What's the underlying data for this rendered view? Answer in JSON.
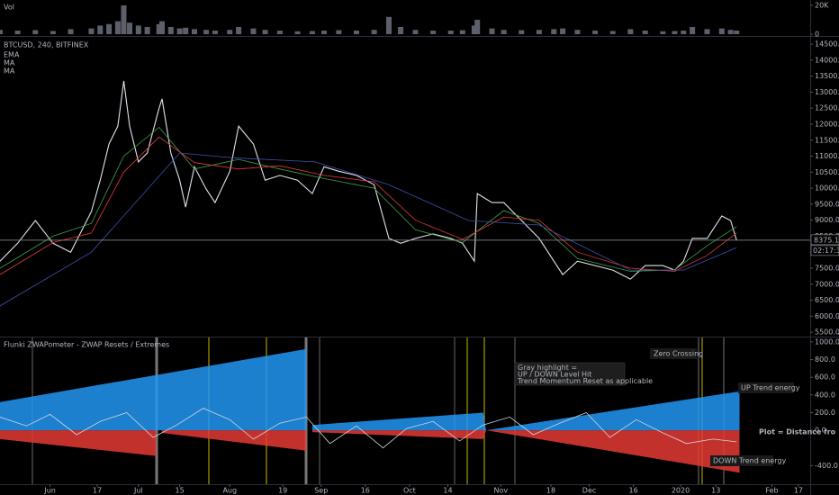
{
  "chart_data": [
    {
      "type": "bar",
      "title": "Vol",
      "color": "#5d606b",
      "ylim": [
        -1250,
        23750
      ],
      "yticks": [
        0,
        {
          "value": 20000,
          "label": "20K"
        }
      ],
      "x": [
        -17,
        -11,
        -5,
        1,
        7,
        14,
        17,
        20,
        23,
        25,
        27,
        30,
        33,
        37,
        38,
        41,
        44,
        46,
        49,
        53,
        56,
        61,
        64,
        69,
        73,
        78,
        84,
        89,
        93,
        98,
        104,
        110,
        115,
        119,
        124,
        130,
        136,
        140,
        144,
        145,
        150,
        154,
        160,
        166,
        171,
        174,
        179,
        185,
        191,
        197,
        202,
        208,
        212,
        215,
        218,
        223,
        228,
        231,
        233
      ],
      "values": [
        3000,
        2500,
        2800,
        2200,
        3500,
        4000,
        6000,
        7000,
        9000,
        20000,
        8000,
        6000,
        5000,
        7000,
        9000,
        5000,
        4000,
        4500,
        3500,
        3000,
        2500,
        3000,
        5000,
        4000,
        3000,
        2500,
        2000,
        2200,
        2500,
        2800,
        2500,
        3000,
        12000,
        5000,
        3000,
        2500,
        2500,
        2800,
        6000,
        10000,
        4000,
        3000,
        2800,
        3000,
        3500,
        4000,
        3000,
        2500,
        2200,
        3500,
        2500,
        2000,
        2200,
        2500,
        5000,
        3500,
        4000,
        3000,
        2500
      ]
    },
    {
      "type": "line",
      "title": "BTCUSD, 240, BITFINEX",
      "countdown": "02:17:34",
      "ylim": [
        5390,
        14700
      ],
      "yticks": [
        {
          "value": 5500,
          "label": "5500.0"
        },
        {
          "value": 6000,
          "label": "6000.0"
        },
        {
          "value": 6500,
          "label": "6500.0"
        },
        {
          "value": 7000,
          "label": "7000.0"
        },
        {
          "value": 7500,
          "label": "7500.0"
        },
        {
          "value": 8000,
          "label": "8000.0"
        },
        {
          "value": 8500,
          "label": "8500.0"
        },
        {
          "value": 9000,
          "label": "9000.0"
        },
        {
          "value": 9500,
          "label": "9500.0"
        },
        {
          "value": 10000,
          "label": "10000.0"
        },
        {
          "value": 10500,
          "label": "10500.0"
        },
        {
          "value": 11000,
          "label": "11000.0"
        },
        {
          "value": 11500,
          "label": "11500.0"
        },
        {
          "value": 12000,
          "label": "12000.0"
        },
        {
          "value": 12500,
          "label": "12500.0"
        },
        {
          "value": 13000,
          "label": "13000.0"
        },
        {
          "value": 13500,
          "label": "13500.0"
        },
        {
          "value": 14000,
          "label": "14000.0"
        },
        {
          "value": 14500,
          "label": "14500.0"
        }
      ],
      "xlim": [
        -17,
        258
      ],
      "xticks": [
        {
          "value": 0,
          "label": "Jun"
        },
        {
          "value": 16,
          "label": "17"
        },
        {
          "value": 30,
          "label": "Jul"
        },
        {
          "value": 44,
          "label": "15"
        },
        {
          "value": 61,
          "label": "Aug"
        },
        {
          "value": 79,
          "label": "19"
        },
        {
          "value": 92,
          "label": "Sep"
        },
        {
          "value": 107,
          "label": "16"
        },
        {
          "value": 122,
          "label": "Oct"
        },
        {
          "value": 135,
          "label": "14"
        },
        {
          "value": 153,
          "label": "Nov"
        },
        {
          "value": 170,
          "label": "18"
        },
        {
          "value": 183,
          "label": "Dec"
        },
        {
          "value": 198,
          "label": "16"
        },
        {
          "value": 214,
          "label": "2020"
        },
        {
          "value": 226,
          "label": "13"
        },
        {
          "value": 245,
          "label": "Feb"
        },
        {
          "value": 254,
          "label": "17"
        }
      ],
      "series": [
        {
          "color": "#e0e3eb",
          "x": [
            -17,
            -11,
            -5,
            1,
            7,
            14,
            17,
            20,
            23,
            25,
            27,
            30,
            33,
            37,
            38,
            41,
            44,
            46,
            49,
            53,
            56,
            61,
            64,
            69,
            73,
            78,
            84,
            89,
            93,
            98,
            104,
            110,
            115,
            119,
            124,
            130,
            136,
            140,
            144,
            145,
            150,
            154,
            160,
            166,
            171,
            174,
            179,
            185,
            191,
            197,
            202,
            208,
            212,
            215,
            218,
            223,
            228,
            231,
            233
          ],
          "values": [
            7720,
            8280,
            8990,
            8280,
            8000,
            9270,
            10250,
            11380,
            11940,
            13350,
            11940,
            10820,
            11100,
            12500,
            12790,
            11100,
            10250,
            9410,
            10670,
            9970,
            9550,
            10530,
            11940,
            11380,
            10250,
            10400,
            10250,
            9830,
            10670,
            10530,
            10400,
            10110,
            8430,
            8280,
            8430,
            8570,
            8430,
            8280,
            7720,
            9830,
            9550,
            9550,
            8990,
            8430,
            7720,
            7300,
            7720,
            7580,
            7440,
            7160,
            7580,
            7580,
            7440,
            7720,
            8430,
            8430,
            9130,
            8990,
            8375.1
          ]
        },
        {
          "name": "EMA",
          "color": "#43a047",
          "x": [
            -17,
            1,
            14,
            25,
            37,
            49,
            64,
            78,
            93,
            110,
            124,
            140,
            154,
            166,
            179,
            197,
            212,
            223,
            233
          ],
          "values": [
            7500,
            8500,
            8900,
            11000,
            11900,
            10600,
            10900,
            10600,
            10300,
            10000,
            8700,
            8300,
            9300,
            8900,
            7800,
            7400,
            7450,
            8200,
            8800
          ]
        },
        {
          "name": "MA",
          "color": "#e53935",
          "x": [
            -17,
            1,
            14,
            25,
            37,
            49,
            64,
            78,
            93,
            110,
            124,
            140,
            154,
            166,
            179,
            197,
            212,
            223,
            233
          ],
          "values": [
            7300,
            8300,
            8600,
            10500,
            11600,
            10800,
            10600,
            10700,
            10400,
            10200,
            9000,
            8400,
            9100,
            9000,
            8000,
            7500,
            7400,
            7900,
            8600
          ]
        },
        {
          "name": "MA",
          "color": "#3f51b5",
          "x": [
            -17,
            14,
            44,
            62,
            90,
            115,
            142,
            166,
            197,
            215,
            233
          ],
          "values": [
            6320,
            8000,
            11100,
            10950,
            10820,
            10110,
            8990,
            8850,
            7440,
            7440,
            8140
          ]
        }
      ]
    },
    {
      "type": "area",
      "title": "Flunki ZWAPometer - ZWAP Resets / Extremes",
      "ylim": [
        -610,
        1050
      ],
      "yticks": [
        {
          "value": -400,
          "label": "-400.0"
        },
        {
          "value": 0,
          "label": "0.0"
        },
        {
          "value": 200,
          "label": "200.0"
        },
        {
          "value": 400,
          "label": "400.0"
        },
        {
          "value": 600,
          "label": "600.0"
        },
        {
          "value": 800,
          "label": "800.0"
        },
        {
          "value": 1000,
          "label": "1000.0"
        }
      ],
      "annotations": [
        "Zero Crossing",
        "UP Trend energy",
        "DOWN Trend energy",
        "Plot = Distance fro",
        "Gray highlight =",
        "UP  /  DOWN  Level Hit",
        "Trend Momentum Reset as applicable"
      ],
      "series": [
        {
          "style": "area",
          "color": "#2196f3",
          "x": [
            -17,
            87,
            88,
            89,
            147,
            148,
            234
          ],
          "values": [
            320,
            920,
            null,
            60,
            200,
            0,
            440
          ]
        },
        {
          "style": "area",
          "color": "#e53935",
          "x": [
            -17,
            36,
            37,
            38,
            87,
            88,
            89,
            147,
            148,
            234
          ],
          "values": [
            -100,
            -290,
            null,
            -30,
            -230,
            null,
            -20,
            -100,
            0,
            -480
          ]
        },
        {
          "style": "line",
          "color": "#d1d4dc",
          "x": [
            -17,
            -8,
            0,
            9,
            17,
            26,
            35,
            43,
            52,
            61,
            69,
            78,
            87,
            95,
            104,
            113,
            121,
            130,
            139,
            147,
            156,
            164,
            173,
            182,
            190,
            199,
            208,
            216,
            225,
            233
          ],
          "values": [
            150,
            50,
            180,
            -50,
            100,
            200,
            -80,
            60,
            250,
            120,
            -100,
            80,
            150,
            -150,
            50,
            -200,
            20,
            100,
            -120,
            60,
            150,
            -50,
            80,
            200,
            -80,
            120,
            -30,
            -150,
            -100,
            -130
          ]
        }
      ]
    }
  ]
}
